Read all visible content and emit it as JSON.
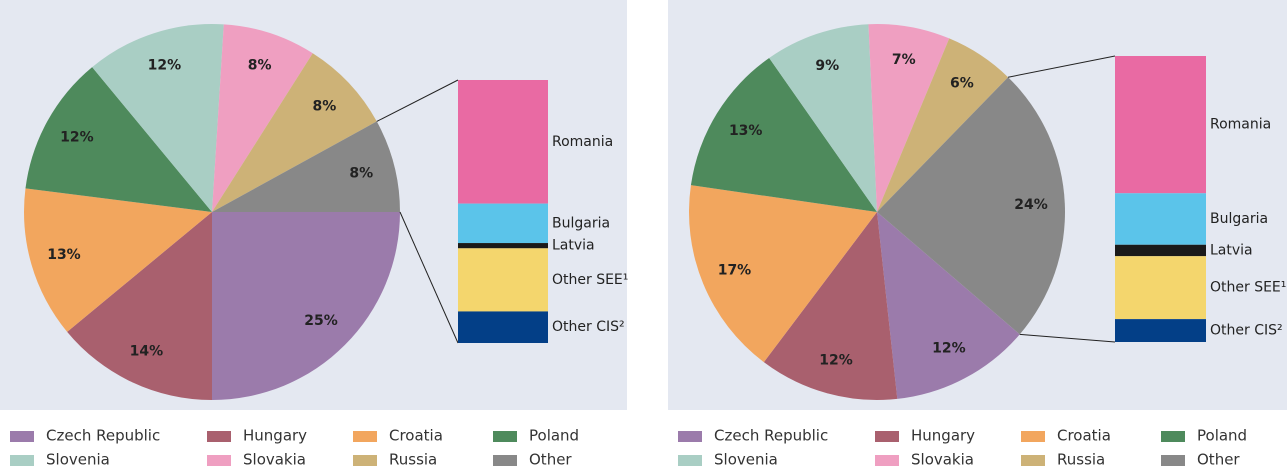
{
  "chart_data": [
    {
      "type": "pie",
      "categories": [
        "Czech Republic",
        "Hungary",
        "Croatia",
        "Poland",
        "Slovenia",
        "Slovakia",
        "Russia",
        "Other"
      ],
      "values": [
        25,
        14,
        13,
        12,
        12,
        8,
        8,
        8
      ],
      "value_labels": [
        "25%",
        "14%",
        "13%",
        "12%",
        "12%",
        "8%",
        "8%",
        "8%"
      ],
      "colors": [
        "#9b7bab",
        "#a9606e",
        "#f2a65e",
        "#4e8a5c",
        "#a9cec4",
        "#ef9fc1",
        "#cdb277",
        "#888888"
      ],
      "breakdown": {
        "categories": [
          "Romania",
          "Bulgaria",
          "Latvia",
          "Other SEE¹",
          "Other CIS²"
        ],
        "values": [
          47,
          15,
          2,
          24,
          12
        ],
        "colors": [
          "#e96aa3",
          "#5bc4ea",
          "#1a1a1a",
          "#f4d66d",
          "#033f87"
        ]
      }
    },
    {
      "type": "pie",
      "categories": [
        "Czech Republic",
        "Hungary",
        "Croatia",
        "Poland",
        "Slovenia",
        "Slovakia",
        "Russia",
        "Other"
      ],
      "values": [
        12,
        12,
        17,
        13,
        9,
        7,
        6,
        24
      ],
      "value_labels": [
        "12%",
        "12%",
        "17%",
        "13%",
        "9%",
        "7%",
        "6%",
        "24%"
      ],
      "colors": [
        "#9b7bab",
        "#a9606e",
        "#f2a65e",
        "#4e8a5c",
        "#a9cec4",
        "#ef9fc1",
        "#cdb277",
        "#888888"
      ],
      "breakdown": {
        "categories": [
          "Romania",
          "Bulgaria",
          "Latvia",
          "Other SEE¹",
          "Other CIS²"
        ],
        "values": [
          48,
          18,
          4,
          22,
          8
        ],
        "colors": [
          "#e96aa3",
          "#5bc4ea",
          "#1a1a1a",
          "#f4d66d",
          "#033f87"
        ]
      }
    }
  ]
}
